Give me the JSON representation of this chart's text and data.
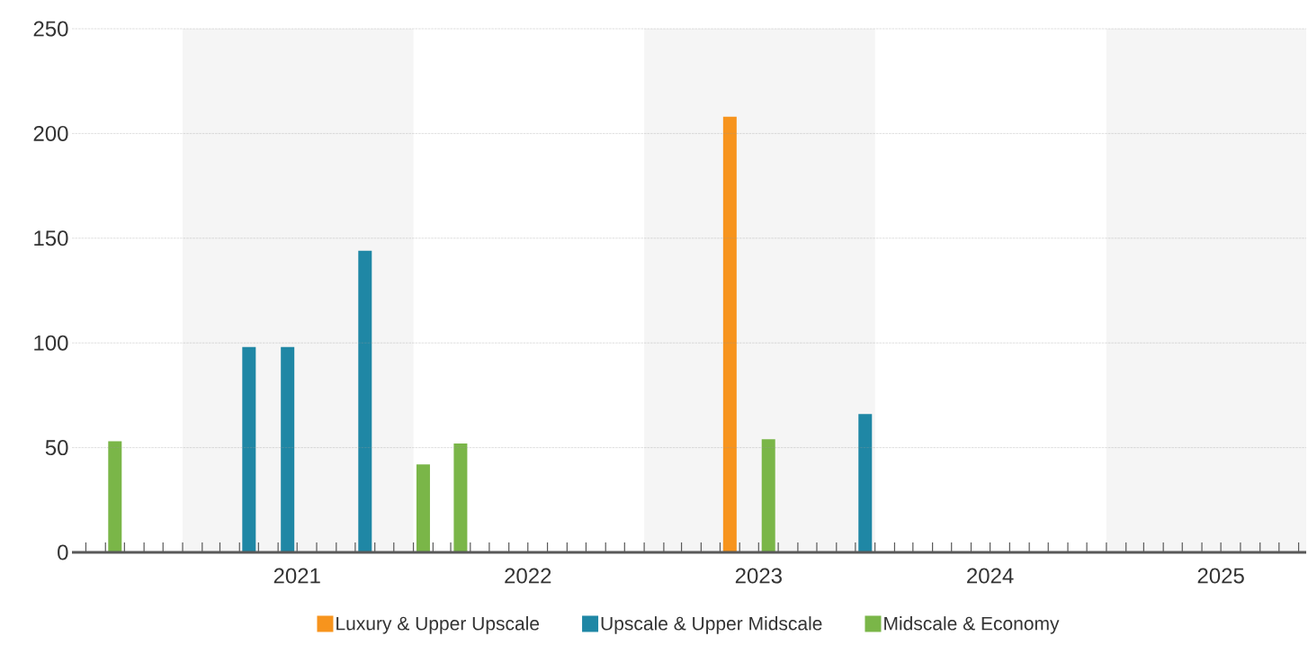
{
  "chart_data": {
    "type": "bar",
    "series": [
      {
        "name": "Luxury & Upper Upscale",
        "color": "#f7941d",
        "x": [
          "2023-05"
        ],
        "values": [
          208
        ]
      },
      {
        "name": "Upscale & Upper Midscale",
        "color": "#1f87a5",
        "x": [
          "2021-04",
          "2021-06",
          "2021-10",
          "2023-12"
        ],
        "values": [
          98,
          98,
          144,
          66
        ]
      },
      {
        "name": "Midscale & Economy",
        "color": "#7ab648",
        "x": [
          "2020-09",
          "2022-01",
          "2022-03",
          "2023-07"
        ],
        "values": [
          53,
          42,
          52,
          54
        ]
      }
    ],
    "xlim": [
      "2020-07-10",
      "2025-11-13"
    ],
    "ylim": [
      0,
      250
    ],
    "yticks": [
      0,
      50,
      100,
      150,
      200,
      250
    ],
    "xticks": [
      {
        "value": "2020-08-01",
        "label": null
      },
      {
        "value": "2020-09-01",
        "label": null
      },
      {
        "value": "2020-10-01",
        "label": null
      },
      {
        "value": "2020-11-01",
        "label": null
      },
      {
        "value": "2020-12-01",
        "label": null
      },
      {
        "value": "2021-01-01",
        "label": null
      },
      {
        "value": "2021-02-01",
        "label": null
      },
      {
        "value": "2021-03-01",
        "label": null
      },
      {
        "value": "2021-04-01",
        "label": null
      },
      {
        "value": "2021-05-01",
        "label": null
      },
      {
        "value": "2021-06-01",
        "label": null
      },
      {
        "value": "2021-07-01",
        "label": "2021"
      },
      {
        "value": "2021-08-01",
        "label": null
      },
      {
        "value": "2021-09-01",
        "label": null
      },
      {
        "value": "2021-10-01",
        "label": null
      },
      {
        "value": "2021-11-01",
        "label": null
      },
      {
        "value": "2021-12-01",
        "label": null
      },
      {
        "value": "2022-01-01",
        "label": null
      },
      {
        "value": "2022-02-01",
        "label": null
      },
      {
        "value": "2022-03-01",
        "label": null
      },
      {
        "value": "2022-04-01",
        "label": null
      },
      {
        "value": "2022-05-01",
        "label": null
      },
      {
        "value": "2022-06-01",
        "label": null
      },
      {
        "value": "2022-07-01",
        "label": "2022"
      },
      {
        "value": "2022-08-01",
        "label": null
      },
      {
        "value": "2022-09-01",
        "label": null
      },
      {
        "value": "2022-10-01",
        "label": null
      },
      {
        "value": "2022-11-01",
        "label": null
      },
      {
        "value": "2022-12-01",
        "label": null
      },
      {
        "value": "2023-01-01",
        "label": null
      },
      {
        "value": "2023-02-01",
        "label": null
      },
      {
        "value": "2023-03-01",
        "label": null
      },
      {
        "value": "2023-04-01",
        "label": null
      },
      {
        "value": "2023-05-01",
        "label": null
      },
      {
        "value": "2023-06-01",
        "label": null
      },
      {
        "value": "2023-07-01",
        "label": "2023"
      },
      {
        "value": "2023-08-01",
        "label": null
      },
      {
        "value": "2023-09-01",
        "label": null
      },
      {
        "value": "2023-10-01",
        "label": null
      },
      {
        "value": "2023-11-01",
        "label": null
      },
      {
        "value": "2023-12-01",
        "label": null
      },
      {
        "value": "2024-01-01",
        "label": null
      },
      {
        "value": "2024-02-01",
        "label": null
      },
      {
        "value": "2024-03-01",
        "label": null
      },
      {
        "value": "2024-04-01",
        "label": null
      },
      {
        "value": "2024-05-01",
        "label": null
      },
      {
        "value": "2024-06-01",
        "label": null
      },
      {
        "value": "2024-07-01",
        "label": "2024"
      },
      {
        "value": "2024-08-01",
        "label": null
      },
      {
        "value": "2024-09-01",
        "label": null
      },
      {
        "value": "2024-10-01",
        "label": null
      },
      {
        "value": "2024-11-01",
        "label": null
      },
      {
        "value": "2024-12-01",
        "label": null
      },
      {
        "value": "2025-01-01",
        "label": null
      },
      {
        "value": "2025-02-01",
        "label": null
      },
      {
        "value": "2025-03-01",
        "label": null
      },
      {
        "value": "2025-04-01",
        "label": null
      },
      {
        "value": "2025-05-01",
        "label": null
      },
      {
        "value": "2025-06-01",
        "label": null
      },
      {
        "value": "2025-07-01",
        "label": "2025"
      },
      {
        "value": "2025-08-01",
        "label": null
      },
      {
        "value": "2025-09-01",
        "label": null
      },
      {
        "value": "2025-10-01",
        "label": null
      },
      {
        "value": "2025-11-01",
        "label": null
      }
    ],
    "bands": [
      {
        "axis": "x",
        "from": "2021-01-01",
        "to": "2022-01-01",
        "color": "#f5f5f5"
      },
      {
        "axis": "x",
        "from": "2023-01-01",
        "to": "2024-01-01",
        "color": "#f5f5f5"
      },
      {
        "axis": "x",
        "from": "2025-01-01",
        "to": "2025-11-13",
        "color": "#f5f5f5"
      }
    ],
    "grid": "y",
    "legend": "bottom",
    "marker": "square"
  }
}
